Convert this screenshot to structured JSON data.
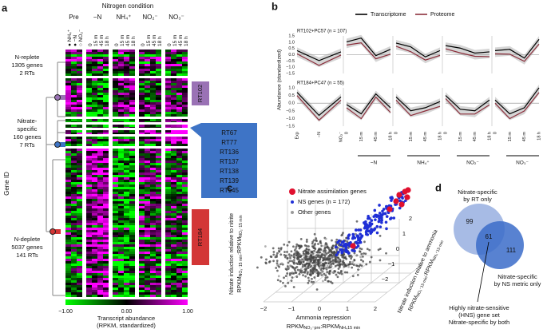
{
  "panel_a": {
    "label": "a",
    "title": "Nitrogen condition",
    "groups": [
      "Pre",
      "−N",
      "NH₄⁺",
      "NO₂⁻",
      "NO₃⁻"
    ],
    "pre_labels": [
      "● NH₄⁺",
      "● −N",
      "○ NO₂⁻"
    ],
    "time_labels": [
      "0",
      "15 m",
      "45 m",
      "18 h"
    ],
    "y_label": "Gene ID",
    "clusters": [
      {
        "lines": [
          "N-replete",
          "1305 genes",
          "2 RTs"
        ]
      },
      {
        "lines": [
          "Nitrate-",
          "specific",
          "160 genes",
          "7 RTs"
        ]
      },
      {
        "lines": [
          "N-deplete",
          "5037 genes",
          "141 RTs"
        ]
      }
    ],
    "rt_boxes": [
      {
        "labels": [
          "RT102"
        ],
        "color": "#9a72b5"
      },
      {
        "labels": [
          "RT67",
          "RT77",
          "RT136",
          "RT137",
          "RT138",
          "RT139",
          "RT145"
        ],
        "color": "#3e74c6"
      },
      {
        "labels": [
          "RT184"
        ],
        "color": "#d33636"
      }
    ],
    "colorbar": {
      "ticks": [
        "−1.00",
        "0.00",
        "1.00"
      ],
      "label": [
        "Transcript abundance",
        "(RPKM, standardized)"
      ]
    }
  },
  "panel_b": {
    "label": "b",
    "legend": [
      {
        "name": "Transcriptome",
        "color": "#000000"
      },
      {
        "name": "Proteome",
        "color": "#8c2f3c"
      }
    ],
    "y_label": "Abundance (standardized)",
    "rows": [
      {
        "title": "RT102+PC57 (n = 107)",
        "yticks": [
          "1.5",
          "1.0",
          "0.5",
          "0.0",
          "−0.5",
          "−1.0",
          "−1.5"
        ]
      },
      {
        "title": "RT184+PC47 (n = 55)",
        "yticks": [
          "1.0",
          "0.5",
          "0.0",
          "−0.5",
          "−1.0",
          "−1.5"
        ]
      }
    ],
    "first_x_labels": [
      "Exp",
      "−N",
      "NO₂⁻"
    ],
    "x_labels": [
      "0",
      "15 m",
      "45 m",
      "18 h"
    ],
    "groups": [
      "−N",
      "NH₄⁺",
      "NO₂⁻",
      "NO₃⁻"
    ]
  },
  "panel_c": {
    "label": "c",
    "legend": [
      {
        "name": "Nitrate assimilation genes",
        "color": "#e0102f"
      },
      {
        "name": "NS genes (n = 172)",
        "color": "#1f2fd6"
      },
      {
        "name": "Other genes",
        "color": "#9a9a9a"
      }
    ],
    "y_label": "Nitrate induction relative to nitrite",
    "y_sub": [
      "RPKM",
      "NO₃⁻15 min",
      ":RPKM",
      "NO₂⁻15 min"
    ],
    "x_label": "Ammonia repression",
    "x_sub": [
      "RPKM",
      "NO₃⁻pre",
      ":RPKM",
      "NH₄15 min"
    ],
    "z_label": "Nitrate induction relative to ammonia",
    "z_sub": [
      "RPKM",
      "NO₃⁻15 min",
      ":RPKM",
      "NH₄⁺15 min"
    ],
    "xticks": [
      "−2",
      "−1",
      "0",
      "1",
      "2"
    ],
    "zticks": [
      "2",
      "1",
      "0",
      "−1",
      "−2"
    ]
  },
  "panel_d": {
    "label": "d",
    "counts": [
      "99",
      "61",
      "111"
    ],
    "rt_label": [
      "Nitrate-specific",
      "by RT only"
    ],
    "ns_label": [
      "Nitrate-specific",
      "by NS metric only"
    ],
    "both_label": [
      "Highly nitrate-sensitive",
      "(HNS) gene set",
      "Nitrate-specific by both"
    ]
  }
}
